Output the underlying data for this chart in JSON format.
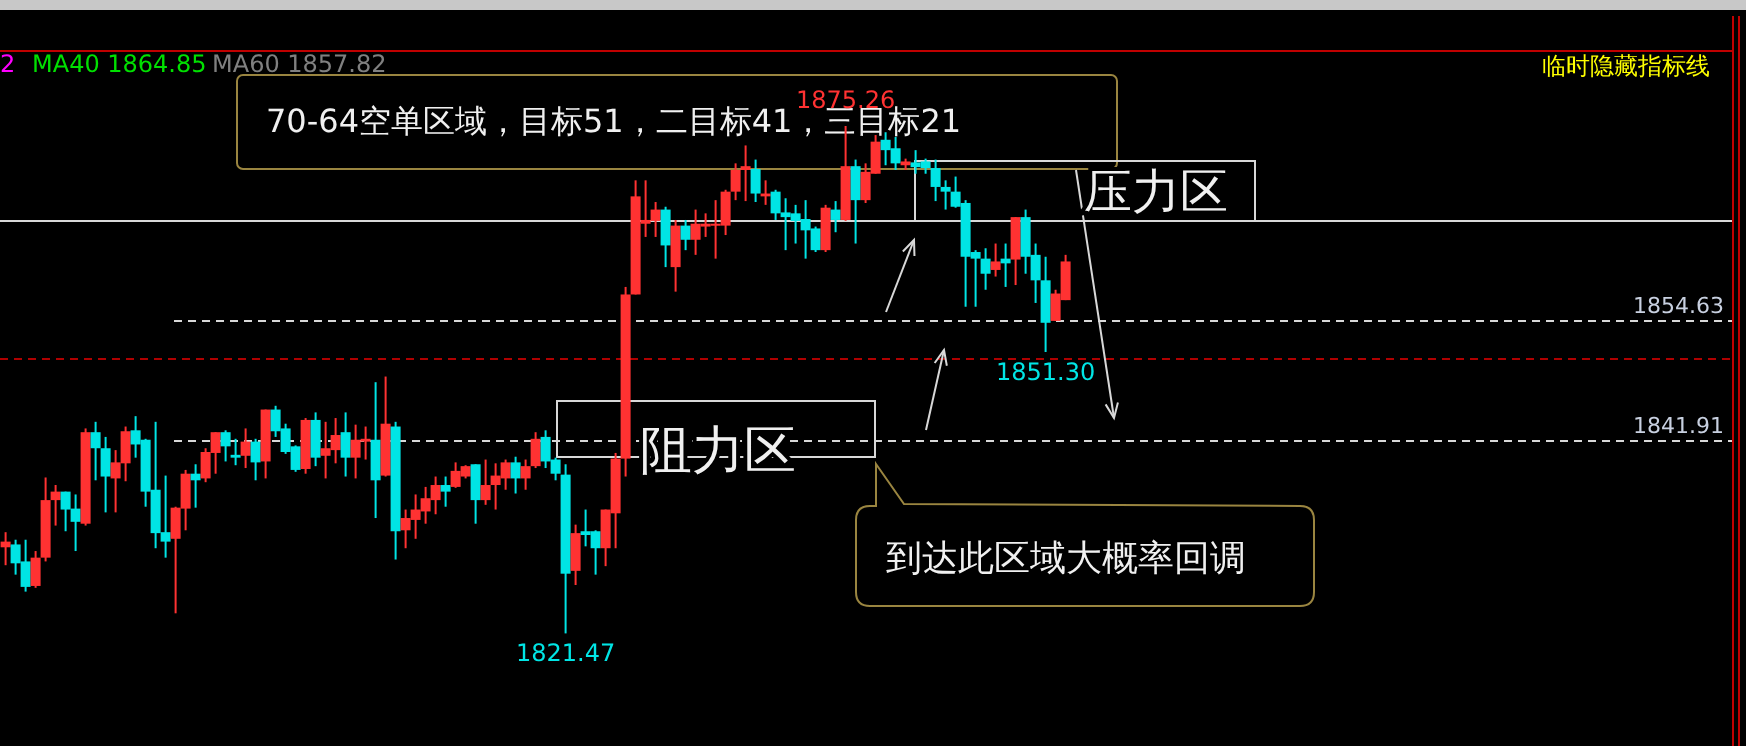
{
  "chart_data": {
    "type": "candlestick",
    "categories": [
      null,
      null,
      null,
      null,
      null,
      null,
      null,
      null,
      null,
      null,
      null,
      null,
      null,
      null,
      null,
      null,
      null,
      null,
      null,
      null,
      null,
      null,
      null,
      null,
      null,
      null,
      null,
      null,
      null,
      null,
      null,
      null,
      null,
      null,
      null,
      null,
      null,
      null,
      null,
      null,
      null,
      null,
      null,
      null,
      null,
      null,
      null,
      null,
      null,
      null,
      null,
      null,
      null,
      null,
      null,
      null,
      null,
      null,
      null,
      null,
      null,
      null,
      null,
      null,
      null,
      null,
      null,
      null,
      null,
      null,
      null,
      null,
      null,
      null,
      null,
      null,
      null,
      null,
      null,
      null,
      null,
      null,
      null,
      null,
      null,
      null,
      null,
      null,
      null,
      null,
      null,
      null,
      null,
      null,
      null,
      null,
      null,
      null,
      null,
      null,
      null,
      null,
      null,
      null,
      null,
      null,
      null
    ],
    "ohlc": [
      [
        1830.6,
        1832.2,
        1828.7,
        1831.2
      ],
      [
        1830.9,
        1831.4,
        1827.7,
        1828.9
      ],
      [
        1829.1,
        1831.4,
        1825.9,
        1826.4
      ],
      [
        1826.5,
        1830.2,
        1826.3,
        1829.5
      ],
      [
        1829.5,
        1838.0,
        1829.1,
        1835.6
      ],
      [
        1835.6,
        1837.2,
        1832.9,
        1836.5
      ],
      [
        1836.5,
        1836.5,
        1832.3,
        1834.6
      ],
      [
        1834.7,
        1836.2,
        1830.2,
        1833.3
      ],
      [
        1833.1,
        1843.2,
        1832.9,
        1842.8
      ],
      [
        1842.8,
        1843.9,
        1837.7,
        1841.1
      ],
      [
        1841.1,
        1842.3,
        1834.3,
        1838.1
      ],
      [
        1837.9,
        1840.9,
        1834.3,
        1839.6
      ],
      [
        1839.5,
        1843.4,
        1837.6,
        1842.9
      ],
      [
        1843.0,
        1844.5,
        1840.1,
        1841.5
      ],
      [
        1842.0,
        1842.1,
        1834.9,
        1836.5
      ],
      [
        1836.7,
        1843.9,
        1830.5,
        1832.1
      ],
      [
        1832.2,
        1838.2,
        1829.5,
        1831.2
      ],
      [
        1831.5,
        1834.9,
        1823.6,
        1834.8
      ],
      [
        1834.7,
        1838.8,
        1832.4,
        1838.4
      ],
      [
        1838.4,
        1839.4,
        1834.8,
        1837.7
      ],
      [
        1837.9,
        1841.1,
        1837.5,
        1840.7
      ],
      [
        1840.6,
        1842.8,
        1838.4,
        1842.8
      ],
      [
        1842.8,
        1843.0,
        1839.7,
        1841.3
      ],
      [
        1840.4,
        1842.1,
        1839.3,
        1840.1
      ],
      [
        1840.3,
        1843.2,
        1839.0,
        1841.8
      ],
      [
        1841.8,
        1842.1,
        1837.7,
        1839.6
      ],
      [
        1839.7,
        1845.2,
        1837.9,
        1845.2
      ],
      [
        1845.2,
        1845.6,
        1842.3,
        1842.9
      ],
      [
        1843.2,
        1843.7,
        1840.5,
        1840.7
      ],
      [
        1841.3,
        1841.4,
        1838.6,
        1838.8
      ],
      [
        1838.9,
        1844.3,
        1838.4,
        1844.1
      ],
      [
        1844.1,
        1844.9,
        1839.2,
        1840.1
      ],
      [
        1840.3,
        1843.9,
        1837.9,
        1841.1
      ],
      [
        1840.9,
        1844.3,
        1839.5,
        1842.5
      ],
      [
        1842.8,
        1844.9,
        1838.1,
        1840.1
      ],
      [
        1840.1,
        1843.6,
        1837.9,
        1842.0
      ],
      [
        1841.8,
        1843.4,
        1839.9,
        1842.1
      ],
      [
        1842.0,
        1848.1,
        1833.7,
        1837.7
      ],
      [
        1838.2,
        1848.7,
        1838.1,
        1843.7
      ],
      [
        1843.4,
        1843.9,
        1829.3,
        1832.3
      ],
      [
        1832.4,
        1834.6,
        1830.5,
        1833.7
      ],
      [
        1833.5,
        1836.2,
        1831.5,
        1834.6
      ],
      [
        1834.4,
        1837.0,
        1833.1,
        1835.8
      ],
      [
        1835.6,
        1838.1,
        1834.1,
        1837.2
      ],
      [
        1837.2,
        1838.1,
        1834.9,
        1836.5
      ],
      [
        1837.0,
        1839.6,
        1836.9,
        1838.7
      ],
      [
        1838.1,
        1839.3,
        1837.9,
        1839.2
      ],
      [
        1839.4,
        1839.4,
        1833.1,
        1835.6
      ],
      [
        1835.6,
        1839.9,
        1835.1,
        1837.2
      ],
      [
        1837.2,
        1839.5,
        1834.6,
        1838.2
      ],
      [
        1837.9,
        1839.9,
        1836.7,
        1839.6
      ],
      [
        1839.6,
        1840.2,
        1836.3,
        1837.9
      ],
      [
        1837.9,
        1839.9,
        1836.7,
        1839.2
      ],
      [
        1839.2,
        1842.8,
        1839.0,
        1842.1
      ],
      [
        1842.3,
        1843.0,
        1839.0,
        1839.7
      ],
      [
        1839.9,
        1840.1,
        1837.7,
        1838.4
      ],
      [
        1838.3,
        1839.4,
        1821.47,
        1827.8
      ],
      [
        1828.1,
        1833.0,
        1826.6,
        1832.1
      ],
      [
        1832.3,
        1834.6,
        1830.7,
        1831.9
      ],
      [
        1832.3,
        1832.4,
        1827.7,
        1830.5
      ],
      [
        1830.5,
        1834.6,
        1828.6,
        1834.6
      ],
      [
        1834.2,
        1840.6,
        1830.5,
        1840.0
      ],
      [
        1840.0,
        1858.2,
        1838.1,
        1857.4
      ],
      [
        1857.4,
        1869.5,
        1857.4,
        1867.8
      ],
      [
        1864.9,
        1869.5,
        1863.5,
        1865.3
      ],
      [
        1865.2,
        1867.2,
        1863.5,
        1866.4
      ],
      [
        1866.4,
        1866.7,
        1860.3,
        1862.6
      ],
      [
        1860.3,
        1865.3,
        1857.7,
        1864.7
      ],
      [
        1864.7,
        1865.3,
        1862.1,
        1863.2
      ],
      [
        1863.2,
        1866.4,
        1861.6,
        1864.9
      ],
      [
        1864.6,
        1866.0,
        1863.5,
        1864.9
      ],
      [
        1864.7,
        1867.4,
        1861.2,
        1864.9
      ],
      [
        1864.7,
        1868.5,
        1863.7,
        1868.3
      ],
      [
        1868.3,
        1871.3,
        1867.4,
        1870.6
      ],
      [
        1870.6,
        1873.2,
        1867.3,
        1871.0
      ],
      [
        1870.7,
        1871.7,
        1867.2,
        1868.1
      ],
      [
        1867.8,
        1869.5,
        1866.9,
        1868.1
      ],
      [
        1868.3,
        1868.5,
        1865.3,
        1866.0
      ],
      [
        1866.1,
        1867.6,
        1862.1,
        1865.6
      ],
      [
        1866.0,
        1866.9,
        1862.8,
        1865.2
      ],
      [
        1865.4,
        1867.4,
        1861.2,
        1864.2
      ],
      [
        1864.4,
        1864.6,
        1861.9,
        1862.1
      ],
      [
        1862.1,
        1866.9,
        1861.9,
        1866.6
      ],
      [
        1866.4,
        1867.3,
        1864.0,
        1865.3
      ],
      [
        1865.3,
        1875.26,
        1865.2,
        1871.0
      ],
      [
        1871.0,
        1871.7,
        1862.8,
        1867.4
      ],
      [
        1867.4,
        1871.3,
        1867.1,
        1870.4
      ],
      [
        1870.2,
        1874.3,
        1870.2,
        1873.6
      ],
      [
        1873.8,
        1874.6,
        1871.1,
        1872.7
      ],
      [
        1872.9,
        1874.1,
        1870.6,
        1871.3
      ],
      [
        1871.1,
        1871.8,
        1870.6,
        1871.5
      ],
      [
        1871.4,
        1872.7,
        1870.2,
        1870.9
      ],
      [
        1871.5,
        1871.8,
        1870.2,
        1870.8
      ],
      [
        1870.8,
        1871.7,
        1867.3,
        1868.8
      ],
      [
        1868.8,
        1869.5,
        1866.4,
        1868.3
      ],
      [
        1868.3,
        1869.9,
        1866.6,
        1866.7
      ],
      [
        1867.1,
        1867.4,
        1856.1,
        1861.4
      ],
      [
        1861.9,
        1862.1,
        1856.1,
        1861.2
      ],
      [
        1861.2,
        1862.3,
        1857.9,
        1859.6
      ],
      [
        1860.0,
        1862.8,
        1859.3,
        1860.9
      ],
      [
        1861.2,
        1862.8,
        1858.2,
        1860.7
      ],
      [
        1861.1,
        1865.6,
        1858.4,
        1865.6
      ],
      [
        1865.6,
        1866.4,
        1859.6,
        1861.4
      ],
      [
        1861.6,
        1862.8,
        1856.5,
        1858.9
      ],
      [
        1858.9,
        1861.4,
        1851.3,
        1854.4
      ],
      [
        1854.6,
        1857.9,
        1854.6,
        1857.5
      ],
      [
        1856.8,
        1861.6,
        1856.8,
        1860.9
      ]
    ],
    "colors": [
      "#ff3232",
      "#00e5e5",
      "#00e5e5",
      "#ff3232",
      "#ff3232",
      "#ff3232",
      "#00e5e5",
      "#00e5e5",
      "#ff3232",
      "#00e5e5",
      "#00e5e5",
      "#ff3232",
      "#ff3232",
      "#00e5e5",
      "#00e5e5",
      "#00e5e5",
      "#00e5e5",
      "#ff3232",
      "#ff3232",
      "#00e5e5",
      "#ff3232",
      "#ff3232",
      "#00e5e5",
      "#00e5e5",
      "#ff3232",
      "#00e5e5",
      "#ff3232",
      "#00e5e5",
      "#00e5e5",
      "#00e5e5",
      "#ff3232",
      "#00e5e5",
      "#ff3232",
      "#ff3232",
      "#00e5e5",
      "#ff3232",
      "#ff3232",
      "#00e5e5",
      "#ff3232",
      "#00e5e5",
      "#ff3232",
      "#ff3232",
      "#ff3232",
      "#ff3232",
      "#00e5e5",
      "#ff3232",
      "#ff3232",
      "#00e5e5",
      "#ff3232",
      "#ff3232",
      "#ff3232",
      "#00e5e5",
      "#ff3232",
      "#ff3232",
      "#00e5e5",
      "#00e5e5",
      "#00e5e5",
      "#ff3232",
      "#00e5e5",
      "#00e5e5",
      "#ff3232",
      "#ff3232",
      "#ff3232",
      "#ff3232",
      "#ff3232",
      "#ff3232",
      "#00e5e5",
      "#ff3232",
      "#00e5e5",
      "#ff3232",
      "#ff3232",
      "#ff3232",
      "#ff3232",
      "#ff3232",
      "#ff3232",
      "#00e5e5",
      "#ff3232",
      "#00e5e5",
      "#00e5e5",
      "#00e5e5",
      "#00e5e5",
      "#00e5e5",
      "#ff3232",
      "#00e5e5",
      "#ff3232",
      "#00e5e5",
      "#ff3232",
      "#ff3232",
      "#00e5e5",
      "#00e5e5",
      "#ff3232",
      "#00e5e5",
      "#00e5e5",
      "#00e5e5",
      "#00e5e5",
      "#00e5e5",
      "#00e5e5",
      "#00e5e5",
      "#00e5e5",
      "#ff3232",
      "#00e5e5",
      "#ff3232",
      "#00e5e5",
      "#00e5e5",
      "#00e5e5",
      "#ff3232",
      "#ff3232"
    ],
    "ref_lines": [
      {
        "axis": "y",
        "value": 1865.3,
        "color": "#d8d8d8",
        "line_style": "solid"
      },
      {
        "axis": "y",
        "value": 1854.63,
        "label": "1854.63",
        "color": "#d8d8d8",
        "line_style": "dashed"
      },
      {
        "axis": "y",
        "value": 1850.7,
        "color": "#b00000",
        "line_style": "dashed"
      },
      {
        "axis": "y",
        "value": 1841.91,
        "label": "1841.91",
        "color": "#d8d8d8",
        "line_style": "dashed"
      }
    ],
    "annotations": [
      "2",
      "MA40 1864.85",
      "MA60 1857.82",
      "临时隐藏指标线",
      "70-64空单区域，目标51，二目标41，三目标21",
      "压力区",
      "阻力区",
      "到达此区域大概率回调",
      {
        "text": "1875.26",
        "y": 1875.26
      },
      {
        "text": "1851.30",
        "y": 1851.3
      },
      {
        "text": "1821.47",
        "y": 1821.47
      }
    ]
  }
}
